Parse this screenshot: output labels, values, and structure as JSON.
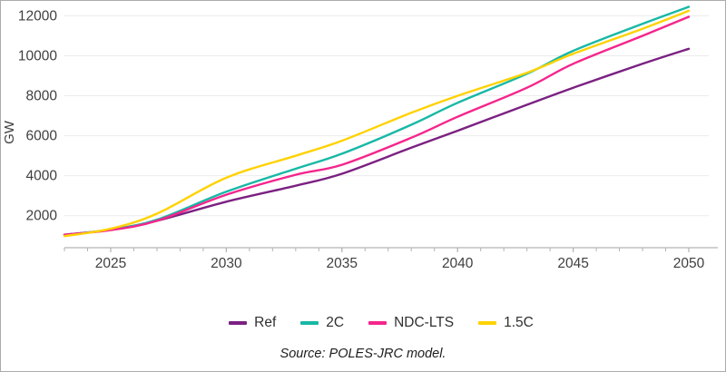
{
  "source": "Source: POLES-JRC model.",
  "chart_data": {
    "type": "line",
    "title": "",
    "xlabel": "",
    "ylabel": "GW",
    "xlim": [
      2023,
      2050
    ],
    "ylim": [
      400,
      12700
    ],
    "yticks": [
      2000,
      4000,
      6000,
      8000,
      10000,
      12000
    ],
    "xticks_major": [
      2025,
      2030,
      2035,
      2040,
      2045,
      2050
    ],
    "xticks_minor_step": 1,
    "grid": "horizontal-only",
    "legend_position": "bottom",
    "colors": {
      "grid": "#ebebeb",
      "axis": "#b3b3b3",
      "text": "#3f3f3f"
    },
    "x": [
      2023,
      2025,
      2027,
      2030,
      2033,
      2035,
      2038,
      2040,
      2043,
      2045,
      2048,
      2050
    ],
    "series": [
      {
        "name": "Ref",
        "color": "#7b2182",
        "values": [
          1050,
          1300,
          1750,
          2700,
          3500,
          4100,
          5400,
          6250,
          7550,
          8400,
          9600,
          10350
        ]
      },
      {
        "name": "2C",
        "color": "#17b8a6",
        "values": [
          1050,
          1300,
          1800,
          3200,
          4350,
          5100,
          6550,
          7650,
          9100,
          10250,
          11600,
          12450
        ]
      },
      {
        "name": "NDC-LTS",
        "color": "#f5258c",
        "values": [
          1050,
          1280,
          1750,
          3050,
          4050,
          4550,
          5900,
          6950,
          8400,
          9600,
          11000,
          11950
        ]
      },
      {
        "name": "1.5C",
        "color": "#ffd200",
        "values": [
          980,
          1350,
          2100,
          3900,
          5000,
          5750,
          7150,
          8000,
          9150,
          10100,
          11350,
          12250
        ]
      }
    ]
  }
}
